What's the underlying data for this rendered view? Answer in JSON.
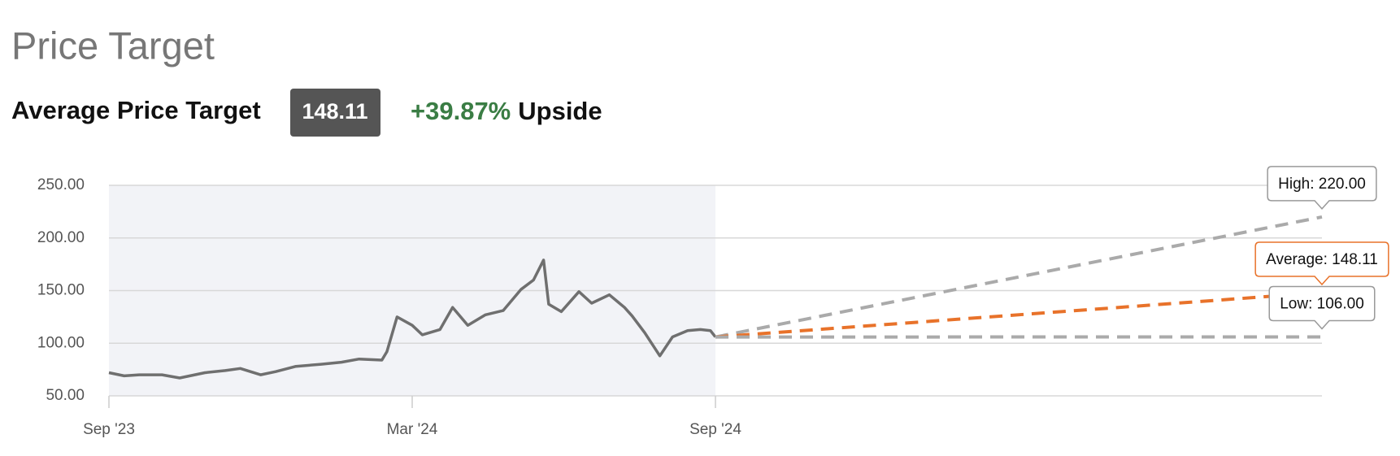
{
  "header": {
    "title": "Price Target",
    "label": "Average Price Target",
    "badge": "148.11",
    "change": "+39.87%",
    "change_suffix": "Upside"
  },
  "chart_data": {
    "type": "line",
    "xlim": [
      0,
      24
    ],
    "xticks": [
      {
        "value": 0,
        "label": "Sep '23"
      },
      {
        "value": 6,
        "label": "Mar '24"
      },
      {
        "value": 12,
        "label": "Sep '24"
      }
    ],
    "ylim": [
      50,
      250
    ],
    "yticks": [
      {
        "value": 50,
        "label": "50.00"
      },
      {
        "value": 100,
        "label": "100.00"
      },
      {
        "value": 150,
        "label": "150.00"
      },
      {
        "value": 200,
        "label": "200.00"
      },
      {
        "value": 250,
        "label": "250.00"
      }
    ],
    "grid": true,
    "shade_history": true,
    "series": [
      {
        "color": "#6f6f6f",
        "x": [
          0,
          0.3,
          0.6,
          1.05,
          1.4,
          1.9,
          2.3,
          2.6,
          3.0,
          3.3,
          3.7,
          4.2,
          4.6,
          4.95,
          5.4,
          5.5,
          5.7,
          6.0,
          6.2,
          6.55,
          6.8,
          7.1,
          7.45,
          7.8,
          8.15,
          8.4,
          8.6,
          8.7,
          8.95,
          9.3,
          9.55,
          9.9,
          10.2,
          10.35,
          10.6,
          10.9,
          11.15,
          11.45,
          11.7,
          11.9,
          12
        ],
        "values": [
          72,
          69,
          70,
          70,
          67,
          72,
          74,
          76,
          70,
          73,
          78,
          80,
          82,
          85,
          84,
          92,
          125,
          117,
          108,
          113,
          134,
          117,
          127,
          131,
          151,
          160,
          179,
          137,
          130,
          149,
          138,
          146,
          134,
          126,
          110,
          88,
          106,
          112,
          113,
          112,
          105.89
        ]
      },
      {
        "color": "#aaaaaa",
        "dash": true,
        "x": [
          12,
          24
        ],
        "values": [
          105.89,
          220
        ],
        "callout": "High: 220.00"
      },
      {
        "color": "#e8722a",
        "dash": true,
        "x": [
          12,
          24
        ],
        "values": [
          105.89,
          148.11
        ],
        "callout": "Average: 148.11"
      },
      {
        "color": "#aaaaaa",
        "dash": true,
        "x": [
          12,
          24
        ],
        "values": [
          105.89,
          106
        ],
        "callout": "Low: 106.00"
      }
    ]
  }
}
